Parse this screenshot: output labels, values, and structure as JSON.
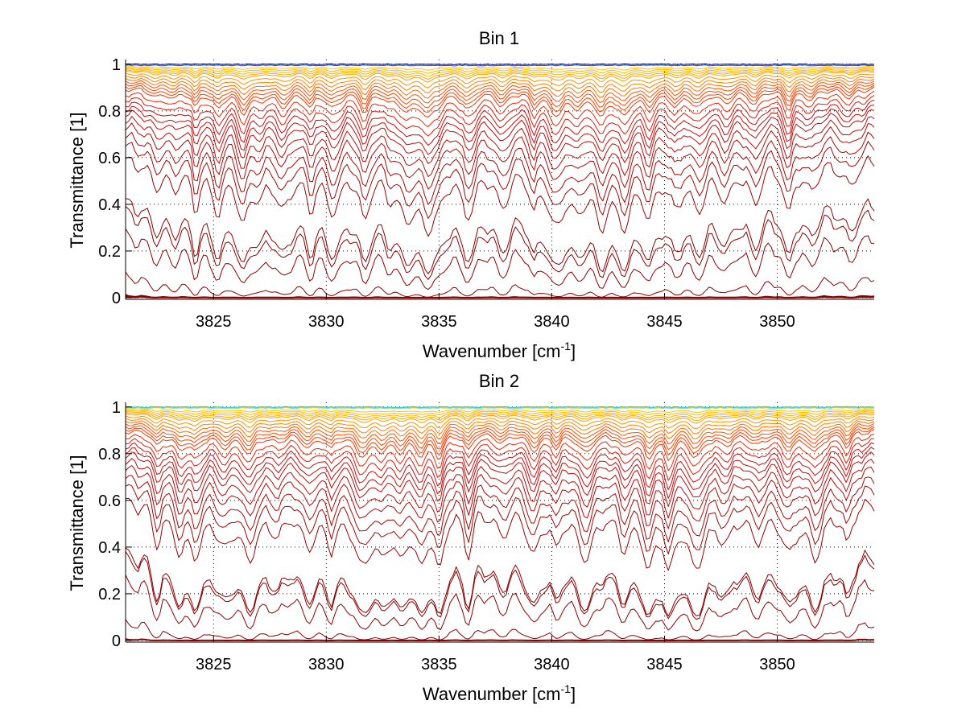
{
  "chart_data": [
    {
      "type": "line",
      "title": "Bin 1",
      "xlabel": "Wavenumber [cm",
      "xlabel_superscript": "-1",
      "xlabel_suffix": "]",
      "ylabel": "Transmittance [1]",
      "xlim": [
        3821.1,
        3854.3
      ],
      "ylim": [
        -0.007,
        1.02
      ],
      "xticks": [
        3825,
        3830,
        3835,
        3840,
        3845,
        3850
      ],
      "xtick_labels": [
        "3825",
        "3830",
        "3835",
        "3840",
        "3845",
        "3850"
      ],
      "yticks": [
        0,
        0.2,
        0.4,
        0.6,
        0.8,
        1
      ],
      "ytick_labels": [
        "0",
        "0.2",
        "0.4",
        "0.6",
        "0.8",
        "1"
      ],
      "grid": "dotted",
      "series_description": "family of transmittance spectra at increasing optical depth",
      "baseline_levels": [
        1.0,
        0.995,
        0.99,
        0.985,
        0.98,
        0.975,
        0.97,
        0.96,
        0.95,
        0.94,
        0.93,
        0.92,
        0.91,
        0.9,
        0.88,
        0.86,
        0.84,
        0.82,
        0.8,
        0.77,
        0.74,
        0.7,
        0.66,
        0.6,
        0.42,
        0.38,
        0.28,
        0.1,
        0.01,
        0.005
      ],
      "line_centers": [
        3822.5,
        3823.3,
        3824.2,
        3825.2,
        3826.3,
        3827.0,
        3828.1,
        3829.3,
        3830.3,
        3831.7,
        3832.8,
        3833.6,
        3834.5,
        3835.0,
        3836.3,
        3837.8,
        3839.2,
        3840.2,
        3841.2,
        3842.2,
        3843.2,
        3844.3,
        3845.5,
        3846.5,
        3847.7,
        3849.0,
        3850.5,
        3851.5,
        3853.2
      ],
      "colors": [
        "#00008f",
        "#0050ff",
        "#00c0ff",
        "#ffd000",
        "#ffa000",
        "#ff7000",
        "#ff3000",
        "#ee1000",
        "#c00000",
        "#8b0000"
      ]
    },
    {
      "type": "line",
      "title": "Bin 2",
      "xlabel": "Wavenumber [cm",
      "xlabel_superscript": "-1",
      "xlabel_suffix": "]",
      "ylabel": "Transmittance [1]",
      "xlim": [
        3821.1,
        3854.3
      ],
      "ylim": [
        -0.007,
        1.02
      ],
      "xticks": [
        3825,
        3830,
        3835,
        3840,
        3845,
        3850
      ],
      "xtick_labels": [
        "3825",
        "3830",
        "3835",
        "3840",
        "3845",
        "3850"
      ],
      "yticks": [
        0,
        0.2,
        0.4,
        0.6,
        0.8,
        1
      ],
      "ytick_labels": [
        "0",
        "0.2",
        "0.4",
        "0.6",
        "0.8",
        "1"
      ],
      "grid": "dotted",
      "series_description": "family of transmittance spectra at increasing optical depth",
      "baseline_levels": [
        1.0,
        0.998,
        0.995,
        0.99,
        0.985,
        0.98,
        0.975,
        0.97,
        0.96,
        0.95,
        0.94,
        0.93,
        0.92,
        0.91,
        0.9,
        0.88,
        0.86,
        0.84,
        0.82,
        0.8,
        0.77,
        0.74,
        0.7,
        0.66,
        0.6,
        0.38,
        0.36,
        0.26,
        0.08,
        0.005
      ],
      "line_centers": [
        3822.5,
        3823.5,
        3824.2,
        3825.5,
        3826.6,
        3827.8,
        3829.2,
        3830.2,
        3831.6,
        3832.5,
        3833.3,
        3834.2,
        3835.0,
        3836.3,
        3837.8,
        3839.2,
        3840.2,
        3841.5,
        3843.2,
        3844.3,
        3845.2,
        3846.4,
        3847.7,
        3849.1,
        3850.5,
        3851.7,
        3853.1
      ],
      "colors": [
        "#00c0ff",
        "#40e0d0",
        "#ffd000",
        "#ffa000",
        "#ff7000",
        "#ff3000",
        "#ee1000",
        "#c00000",
        "#8b0000"
      ]
    }
  ]
}
